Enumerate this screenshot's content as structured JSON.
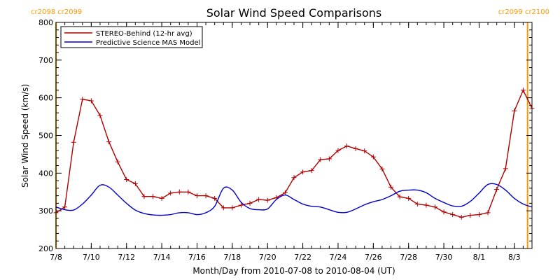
{
  "chart_data": {
    "type": "line",
    "title": "Solar Wind Speed Comparisons",
    "xlabel": "Month/Day from 2010-07-08 to 2010-08-04 (UT)",
    "ylabel": "Solar Wind Speed (km/s)",
    "xlim": [
      "2010-07-08",
      "2010-08-04"
    ],
    "ylim": [
      200,
      800
    ],
    "x_ticks": [
      "7/8",
      "7/10",
      "7/12",
      "7/14",
      "7/16",
      "7/18",
      "7/20",
      "7/22",
      "7/24",
      "7/26",
      "7/28",
      "7/30",
      "8/1",
      "8/3"
    ],
    "x_tick_dates": [
      "2010-07-08",
      "2010-07-10",
      "2010-07-12",
      "2010-07-14",
      "2010-07-16",
      "2010-07-18",
      "2010-07-20",
      "2010-07-22",
      "2010-07-24",
      "2010-07-26",
      "2010-07-28",
      "2010-07-30",
      "2010-08-01",
      "2010-08-03"
    ],
    "y_ticks": [
      200,
      300,
      400,
      500,
      600,
      700,
      800
    ],
    "legend_position": "top-left",
    "carrington_markers": [
      {
        "label": "cr2098 cr2099",
        "date": "2010-07-08",
        "color": "#ff9900"
      },
      {
        "label": "cr2099 cr2100",
        "date": "2010-08-03 18:00",
        "color": "#ff9900"
      }
    ],
    "series": [
      {
        "name": "STEREO-Behind (12-hr avg)",
        "color": "#b00000",
        "markers": true,
        "points": [
          [
            "2010-07-08 00:00",
            295
          ],
          [
            "2010-07-08 12:00",
            310
          ],
          [
            "2010-07-09 00:00",
            482
          ],
          [
            "2010-07-09 12:00",
            596
          ],
          [
            "2010-07-10 00:00",
            592
          ],
          [
            "2010-07-10 12:00",
            553
          ],
          [
            "2010-07-11 00:00",
            483
          ],
          [
            "2010-07-11 12:00",
            430
          ],
          [
            "2010-07-12 00:00",
            383
          ],
          [
            "2010-07-12 12:00",
            372
          ],
          [
            "2010-07-13 00:00",
            338
          ],
          [
            "2010-07-13 12:00",
            338
          ],
          [
            "2010-07-14 00:00",
            333
          ],
          [
            "2010-07-14 12:00",
            347
          ],
          [
            "2010-07-15 00:00",
            350
          ],
          [
            "2010-07-15 12:00",
            350
          ],
          [
            "2010-07-16 00:00",
            340
          ],
          [
            "2010-07-16 12:00",
            340
          ],
          [
            "2010-07-17 00:00",
            333
          ],
          [
            "2010-07-17 12:00",
            308
          ],
          [
            "2010-07-18 00:00",
            308
          ],
          [
            "2010-07-18 12:00",
            315
          ],
          [
            "2010-07-19 00:00",
            320
          ],
          [
            "2010-07-19 12:00",
            330
          ],
          [
            "2010-07-20 00:00",
            328
          ],
          [
            "2010-07-20 12:00",
            335
          ],
          [
            "2010-07-21 00:00",
            348
          ],
          [
            "2010-07-21 12:00",
            388
          ],
          [
            "2010-07-22 00:00",
            403
          ],
          [
            "2010-07-22 12:00",
            407
          ],
          [
            "2010-07-23 00:00",
            436
          ],
          [
            "2010-07-23 12:00",
            438
          ],
          [
            "2010-07-24 00:00",
            460
          ],
          [
            "2010-07-24 12:00",
            472
          ],
          [
            "2010-07-25 00:00",
            465
          ],
          [
            "2010-07-25 12:00",
            459
          ],
          [
            "2010-07-26 00:00",
            443
          ],
          [
            "2010-07-26 12:00",
            411
          ],
          [
            "2010-07-27 00:00",
            363
          ],
          [
            "2010-07-27 12:00",
            337
          ],
          [
            "2010-07-28 00:00",
            333
          ],
          [
            "2010-07-28 12:00",
            318
          ],
          [
            "2010-07-29 00:00",
            315
          ],
          [
            "2010-07-29 12:00",
            310
          ],
          [
            "2010-07-30 00:00",
            297
          ],
          [
            "2010-07-30 12:00",
            290
          ],
          [
            "2010-07-31 00:00",
            283
          ],
          [
            "2010-07-31 12:00",
            288
          ],
          [
            "2010-08-01 00:00",
            290
          ],
          [
            "2010-08-01 12:00",
            295
          ],
          [
            "2010-08-02 00:00",
            357
          ],
          [
            "2010-08-02 12:00",
            412
          ],
          [
            "2010-08-03 00:00",
            565
          ],
          [
            "2010-08-03 12:00",
            620
          ],
          [
            "2010-08-04 00:00",
            572
          ]
        ]
      },
      {
        "name": "Predictive Science MAS Model",
        "color": "#0000cc",
        "markers": false,
        "points": [
          [
            "2010-07-08 00:00",
            310
          ],
          [
            "2010-07-08 12:00",
            303
          ],
          [
            "2010-07-09 00:00",
            302
          ],
          [
            "2010-07-09 12:00",
            318
          ],
          [
            "2010-07-10 00:00",
            342
          ],
          [
            "2010-07-10 12:00",
            368
          ],
          [
            "2010-07-11 00:00",
            363
          ],
          [
            "2010-07-11 12:00",
            342
          ],
          [
            "2010-07-12 00:00",
            320
          ],
          [
            "2010-07-12 12:00",
            302
          ],
          [
            "2010-07-13 00:00",
            293
          ],
          [
            "2010-07-13 12:00",
            289
          ],
          [
            "2010-07-14 00:00",
            288
          ],
          [
            "2010-07-14 12:00",
            290
          ],
          [
            "2010-07-15 00:00",
            295
          ],
          [
            "2010-07-15 12:00",
            295
          ],
          [
            "2010-07-16 00:00",
            290
          ],
          [
            "2010-07-16 12:00",
            295
          ],
          [
            "2010-07-17 00:00",
            312
          ],
          [
            "2010-07-17 12:00",
            360
          ],
          [
            "2010-07-18 00:00",
            355
          ],
          [
            "2010-07-18 12:00",
            323
          ],
          [
            "2010-07-19 00:00",
            306
          ],
          [
            "2010-07-19 12:00",
            303
          ],
          [
            "2010-07-20 00:00",
            305
          ],
          [
            "2010-07-20 12:00",
            330
          ],
          [
            "2010-07-21 00:00",
            342
          ],
          [
            "2010-07-21 12:00",
            330
          ],
          [
            "2010-07-22 00:00",
            318
          ],
          [
            "2010-07-22 12:00",
            312
          ],
          [
            "2010-07-23 00:00",
            310
          ],
          [
            "2010-07-23 12:00",
            303
          ],
          [
            "2010-07-24 00:00",
            296
          ],
          [
            "2010-07-24 12:00",
            296
          ],
          [
            "2010-07-25 00:00",
            305
          ],
          [
            "2010-07-25 12:00",
            316
          ],
          [
            "2010-07-26 00:00",
            324
          ],
          [
            "2010-07-26 12:00",
            330
          ],
          [
            "2010-07-27 00:00",
            340
          ],
          [
            "2010-07-27 12:00",
            352
          ],
          [
            "2010-07-28 00:00",
            355
          ],
          [
            "2010-07-28 12:00",
            355
          ],
          [
            "2010-07-29 00:00",
            348
          ],
          [
            "2010-07-29 12:00",
            333
          ],
          [
            "2010-07-30 00:00",
            322
          ],
          [
            "2010-07-30 12:00",
            313
          ],
          [
            "2010-07-31 00:00",
            312
          ],
          [
            "2010-07-31 12:00",
            325
          ],
          [
            "2010-08-01 00:00",
            347
          ],
          [
            "2010-08-01 12:00",
            370
          ],
          [
            "2010-08-02 00:00",
            370
          ],
          [
            "2010-08-02 12:00",
            355
          ],
          [
            "2010-08-03 00:00",
            333
          ],
          [
            "2010-08-03 12:00",
            318
          ],
          [
            "2010-08-04 00:00",
            310
          ]
        ]
      }
    ]
  }
}
